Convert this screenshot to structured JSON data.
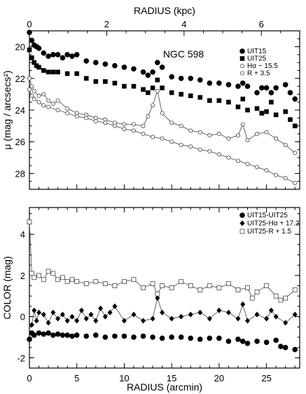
{
  "chart_data": [
    {
      "type": "line",
      "panel": "top",
      "annotation": "NGC 598",
      "top_axis": {
        "label": "RADIUS (kpc)",
        "ticks": [
          0,
          2,
          4,
          6
        ],
        "kpc_per_arcmin": 0.2453
      },
      "xlim": [
        0,
        28.5
      ],
      "ylim": [
        29,
        19
      ],
      "y_inverted": true,
      "y_ticks": [
        20,
        22,
        24,
        26,
        28
      ],
      "ylabel": "μ (mag / arcsecs²)",
      "legend": {
        "position": "top-right"
      },
      "series": [
        {
          "name": "UIT15",
          "marker": "filled-circle",
          "connected": false,
          "x": [
            0,
            0.25,
            0.5,
            0.75,
            1,
            1.5,
            2,
            2.5,
            3,
            3.5,
            4,
            4.5,
            5,
            6,
            7,
            8,
            9,
            10,
            11,
            12,
            12.5,
            13,
            13.5,
            14,
            15,
            16,
            17,
            18,
            19,
            20,
            21,
            22,
            22.5,
            23,
            24,
            24.5,
            25,
            25.5,
            26,
            27,
            27.5,
            28
          ],
          "y": [
            19.1,
            19.6,
            19.9,
            20.0,
            20.1,
            20.4,
            20.6,
            20.5,
            20.5,
            20.7,
            20.5,
            20.6,
            20.5,
            20.9,
            21.0,
            21.1,
            21.2,
            21.3,
            21.4,
            21.6,
            21.8,
            21.6,
            21.0,
            21.3,
            21.9,
            22.0,
            22.0,
            22.1,
            22.3,
            22.3,
            22.4,
            22.5,
            22.3,
            22.5,
            22.9,
            22.6,
            22.6,
            22.9,
            22.6,
            22.4,
            22.9,
            23.3
          ]
        },
        {
          "name": "UIT25",
          "marker": "filled-square",
          "connected": false,
          "x": [
            0,
            0.25,
            0.5,
            0.75,
            1,
            1.5,
            2,
            2.5,
            3,
            4,
            5,
            6,
            7,
            8,
            9,
            10,
            11,
            12,
            12.5,
            13,
            13.5,
            14,
            15,
            16,
            17,
            18,
            19,
            20,
            21,
            22,
            22.5,
            23,
            24,
            24.5,
            25,
            25.5,
            26,
            27,
            27.5,
            28
          ],
          "y": [
            20.2,
            20.7,
            21.0,
            21.2,
            21.3,
            21.5,
            21.6,
            21.6,
            21.6,
            21.7,
            21.7,
            22.0,
            22.2,
            22.2,
            22.3,
            22.5,
            22.5,
            22.7,
            22.9,
            22.6,
            22.1,
            22.6,
            22.9,
            23.0,
            23.1,
            23.2,
            23.4,
            23.4,
            23.5,
            23.8,
            23.3,
            24.0,
            23.9,
            24.2,
            24.1,
            23.5,
            24.3,
            24.1,
            24.6,
            25.0
          ]
        },
        {
          "name": "Hα − 15.5",
          "marker": "open-circle",
          "connected": true,
          "x": [
            0,
            0.25,
            0.5,
            1,
            1.5,
            2,
            2.5,
            3,
            4,
            5,
            6,
            7,
            8,
            9,
            10,
            11,
            12,
            12.5,
            13,
            13.5,
            14,
            15,
            16,
            17,
            18,
            19,
            20,
            21,
            22,
            22.5,
            23,
            24,
            25,
            26,
            27,
            28
          ],
          "y": [
            22.0,
            22.5,
            22.8,
            23.1,
            23.0,
            23.4,
            23.6,
            23.4,
            23.9,
            24.2,
            24.3,
            24.5,
            24.6,
            24.8,
            24.9,
            24.9,
            25.0,
            24.4,
            23.7,
            22.8,
            24.2,
            24.8,
            25.0,
            25.3,
            25.4,
            25.6,
            25.5,
            25.8,
            25.6,
            24.9,
            25.9,
            25.5,
            25.4,
            25.8,
            26.2,
            26.7
          ]
        },
        {
          "name": "R + 3.5",
          "marker": "open-circle",
          "connected": true,
          "x": [
            0,
            0.25,
            0.5,
            1,
            1.5,
            2,
            3,
            4,
            5,
            6,
            7,
            8,
            9,
            10,
            11,
            12,
            13,
            14,
            15,
            16,
            17,
            18,
            19,
            20,
            21,
            22,
            23,
            24,
            25,
            26,
            27,
            28
          ],
          "y": [
            22.7,
            23.1,
            23.3,
            23.5,
            23.7,
            23.8,
            24.0,
            24.2,
            24.4,
            24.5,
            24.7,
            24.8,
            25.0,
            25.2,
            25.3,
            25.5,
            25.7,
            25.8,
            26.0,
            26.2,
            26.3,
            26.5,
            26.6,
            26.8,
            27.0,
            27.2,
            27.4,
            27.6,
            27.8,
            28.1,
            28.3,
            28.6
          ]
        }
      ]
    },
    {
      "type": "line",
      "panel": "bottom",
      "xlim": [
        0,
        28.5
      ],
      "ylim": [
        -2.5,
        5.3
      ],
      "x_ticks": [
        0,
        5,
        10,
        15,
        20,
        25
      ],
      "y_ticks": [
        -2,
        0,
        2,
        4
      ],
      "xlabel": "RADIUS (arcmin)",
      "ylabel": "COLOR (mag)",
      "legend": {
        "position": "top-right"
      },
      "series": [
        {
          "name": "UIT15-UIT25",
          "marker": "filled-circle",
          "connected": false,
          "x": [
            0,
            0.25,
            0.5,
            1,
            1.5,
            2,
            2.5,
            3,
            3.5,
            4,
            4.5,
            5,
            6,
            7,
            8,
            9,
            10,
            11,
            12,
            13,
            14,
            15,
            16,
            17,
            18,
            19,
            20,
            21,
            22,
            22.5,
            23,
            24,
            25,
            26,
            26.5,
            27,
            28
          ],
          "y": [
            -1.1,
            -0.8,
            -0.9,
            -0.8,
            -0.85,
            -0.8,
            -0.9,
            -0.85,
            -0.9,
            -0.9,
            -0.95,
            -0.9,
            -0.95,
            -0.9,
            -1.0,
            -0.95,
            -0.95,
            -1.0,
            -0.95,
            -1.0,
            -1.05,
            -1.0,
            -1.0,
            -1.05,
            -1.1,
            -1.05,
            -1.05,
            -1.2,
            -1.1,
            -1.2,
            -1.3,
            -1.2,
            -1.25,
            -1.15,
            -1.45,
            -1.5,
            -1.6
          ]
        },
        {
          "name": "UIT25-Hα + 17.2",
          "marker": "filled-diamond",
          "connected": true,
          "x": [
            0.25,
            0.5,
            0.75,
            1,
            1.5,
            2,
            2.5,
            3,
            3.5,
            4,
            4.5,
            5,
            5.5,
            6,
            6.5,
            7,
            7.5,
            8,
            8.5,
            9,
            10,
            11,
            12,
            13,
            13.5,
            14,
            15,
            16,
            17,
            18,
            19,
            20,
            21,
            22,
            22.5,
            23,
            24,
            25,
            25.5,
            26,
            27,
            28
          ],
          "y": [
            -0.4,
            0.3,
            -0.2,
            0.2,
            0.1,
            -0.3,
            0.2,
            -0.1,
            0.1,
            -0.2,
            0.0,
            -0.2,
            0.3,
            -0.1,
            0.1,
            -0.2,
            0.4,
            0.0,
            0.2,
            0.5,
            -0.2,
            0.1,
            -0.2,
            -0.1,
            0.9,
            0.2,
            -0.1,
            0.0,
            0.1,
            0.2,
            -0.1,
            0.3,
            0.2,
            -0.1,
            0.6,
            -0.2,
            0.1,
            -0.1,
            0.3,
            0.0,
            -0.3,
            0.1
          ]
        },
        {
          "name": "UIT25-R + 1.5",
          "marker": "open-square",
          "connected": true,
          "x": [
            0,
            0.25,
            0.5,
            1,
            1.5,
            2,
            2.5,
            3,
            3.5,
            4,
            4.5,
            5,
            6,
            7,
            8,
            9,
            10,
            11,
            12,
            13,
            13.5,
            14,
            15,
            16,
            17,
            18,
            19,
            20,
            21,
            22,
            23,
            23.5,
            24,
            25,
            26,
            26.5,
            27,
            28
          ],
          "y": [
            4.6,
            2.1,
            1.9,
            2.0,
            1.8,
            2.2,
            2.1,
            1.8,
            1.9,
            1.7,
            1.8,
            1.7,
            1.6,
            1.7,
            1.6,
            1.5,
            1.7,
            1.8,
            1.4,
            1.6,
            1.1,
            1.5,
            1.4,
            1.7,
            1.5,
            1.3,
            1.5,
            1.4,
            1.6,
            1.3,
            1.4,
            0.9,
            1.2,
            1.5,
            1.0,
            0.8,
            0.9,
            1.3
          ]
        }
      ]
    }
  ]
}
